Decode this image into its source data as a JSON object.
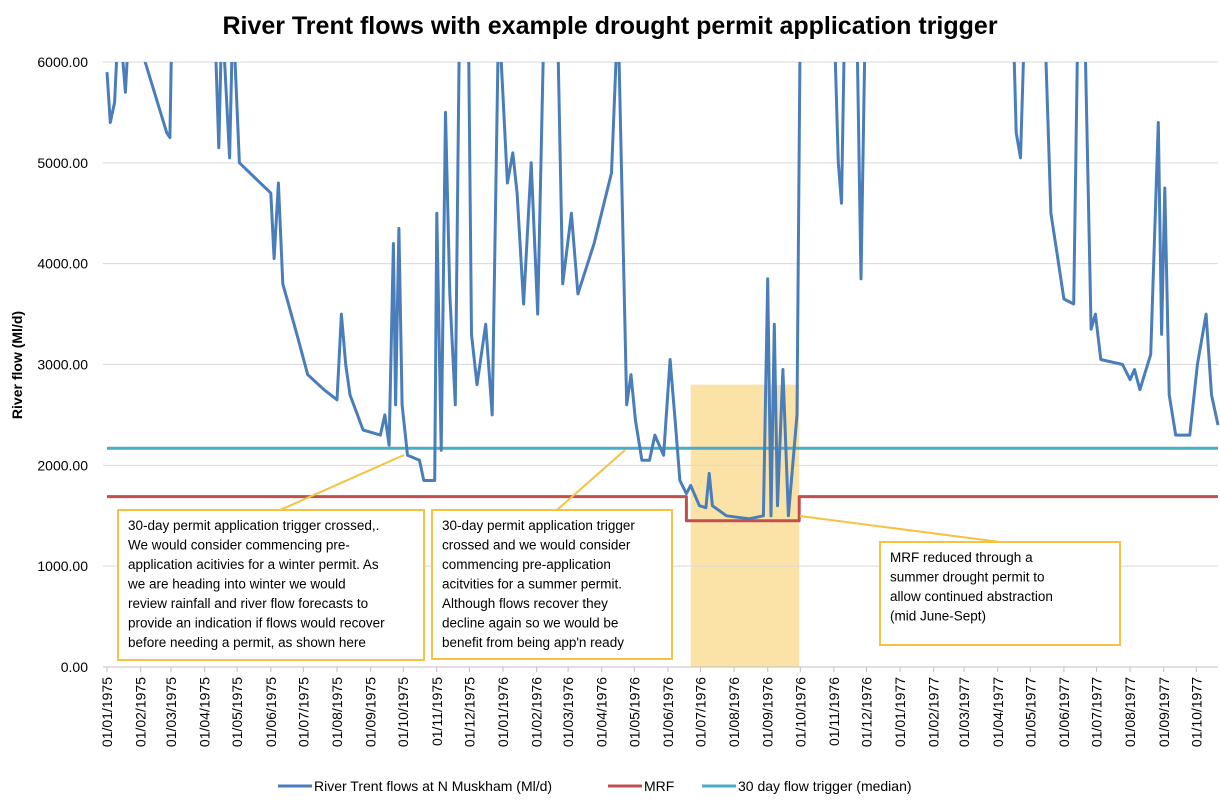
{
  "chart_data": {
    "type": "line",
    "title": "River Trent flows with example drought permit application trigger",
    "y_label": "River flow (Ml/d)",
    "xlim": [
      "01/01/1975",
      "21/10/1977"
    ],
    "ylim": [
      0,
      6000
    ],
    "yticks": [
      {
        "value": 0,
        "label": "0.00"
      },
      {
        "value": 1000,
        "label": "1000.00"
      },
      {
        "value": 2000,
        "label": "2000.00"
      },
      {
        "value": 3000,
        "label": "3000.00"
      },
      {
        "value": 4000,
        "label": "4000.00"
      },
      {
        "value": 5000,
        "label": "5000.00"
      },
      {
        "value": 6000,
        "label": "6000.00"
      }
    ],
    "xticks": [
      "01/01/1975",
      "01/02/1975",
      "01/03/1975",
      "01/04/1975",
      "01/05/1975",
      "01/06/1975",
      "01/07/1975",
      "01/08/1975",
      "01/09/1975",
      "01/10/1975",
      "01/11/1975",
      "01/12/1975",
      "01/01/1976",
      "01/02/1976",
      "01/03/1976",
      "01/04/1976",
      "01/05/1976",
      "01/06/1976",
      "01/07/1976",
      "01/08/1976",
      "01/09/1976",
      "01/10/1976",
      "01/11/1976",
      "01/12/1976",
      "01/01/1977",
      "01/02/1977",
      "01/03/1977",
      "01/04/1977",
      "01/05/1977",
      "01/06/1977",
      "01/07/1977",
      "01/08/1977",
      "01/09/1977",
      "01/10/1977"
    ],
    "grid": true,
    "legend": "bottom",
    "highlight": {
      "x": [
        "22/06/1976",
        "30/09/1976"
      ],
      "y": [
        0,
        2800
      ],
      "color": "#fbe3a8"
    },
    "series": [
      {
        "name": "River Trent flows at N Muskham (Ml/d)",
        "color": "#4a7ebb",
        "x": [
          "01/01/1975",
          "04/01/1975",
          "08/01/1975",
          "12/01/1975",
          "18/01/1975",
          "22/01/1975",
          "25/02/1975",
          "28/02/1975",
          "02/03/1975",
          "10/04/1975",
          "14/04/1975",
          "17/04/1975",
          "24/04/1975",
          "27/04/1975",
          "03/05/1975",
          "01/06/1975",
          "04/06/1975",
          "08/06/1975",
          "12/06/1975",
          "25/06/1975",
          "05/07/1975",
          "20/07/1975",
          "01/08/1975",
          "05/08/1975",
          "09/08/1975",
          "13/08/1975",
          "25/08/1975",
          "10/09/1975",
          "14/09/1975",
          "18/09/1975",
          "22/09/1975",
          "24/09/1975",
          "27/09/1975",
          "30/09/1975",
          "05/10/1975",
          "16/10/1975",
          "20/10/1975",
          "30/10/1975",
          "01/11/1975",
          "05/11/1975",
          "09/11/1975",
          "13/11/1975",
          "18/11/1975",
          "22/11/1975",
          "30/11/1975",
          "03/12/1975",
          "08/12/1975",
          "16/12/1975",
          "22/12/1975",
          "28/12/1975",
          "05/01/1976",
          "10/01/1976",
          "14/01/1976",
          "20/01/1976",
          "27/01/1976",
          "02/02/1976",
          "08/02/1976",
          "20/02/1976",
          "25/02/1976",
          "04/03/1976",
          "10/03/1976",
          "25/03/1976",
          "10/04/1976",
          "16/04/1976",
          "24/04/1976",
          "28/04/1976",
          "02/05/1976",
          "08/05/1976",
          "15/05/1976",
          "20/05/1976",
          "28/05/1976",
          "03/06/1976",
          "08/06/1976",
          "12/06/1976",
          "18/06/1976",
          "22/06/1976",
          "30/06/1976",
          "06/07/1976",
          "09/07/1976",
          "12/07/1976",
          "25/07/1976",
          "15/08/1976",
          "28/08/1976",
          "01/09/1976",
          "04/09/1976",
          "07/09/1976",
          "10/09/1976",
          "15/09/1976",
          "20/09/1976",
          "28/09/1976",
          "01/10/1976",
          "01/11/1976",
          "05/11/1976",
          "08/11/1976",
          "11/11/1976",
          "22/11/1976",
          "26/11/1976",
          "30/11/1976",
          "15/04/1977",
          "18/04/1977",
          "22/04/1977",
          "26/04/1977",
          "14/05/1977",
          "20/05/1977",
          "25/05/1977",
          "01/06/1977",
          "10/06/1977",
          "14/06/1977",
          "20/06/1977",
          "26/06/1977",
          "30/06/1977",
          "05/07/1977",
          "25/07/1977",
          "01/08/1977",
          "05/08/1977",
          "10/08/1977",
          "20/08/1977",
          "27/08/1977",
          "30/08/1977",
          "02/09/1977",
          "06/09/1977",
          "12/09/1977",
          "25/09/1977",
          "02/10/1977",
          "10/10/1977",
          "15/10/1977",
          "21/10/1977"
        ],
        "values": [
          5900,
          5400,
          5600,
          6500,
          5700,
          6500,
          5300,
          5250,
          6500,
          6500,
          5150,
          6500,
          5050,
          6500,
          5000,
          4700,
          4050,
          4800,
          3800,
          3300,
          2900,
          2750,
          2650,
          3500,
          3000,
          2700,
          2350,
          2300,
          2500,
          2200,
          4200,
          2600,
          4350,
          2600,
          2100,
          2050,
          1850,
          1850,
          4500,
          2150,
          5500,
          3700,
          2600,
          6500,
          6500,
          3300,
          2800,
          3400,
          2500,
          6500,
          4800,
          5100,
          4700,
          3600,
          5000,
          3500,
          6500,
          6500,
          3800,
          4500,
          3700,
          4200,
          4900,
          6500,
          2600,
          2900,
          2450,
          2050,
          2050,
          2300,
          2100,
          3050,
          2400,
          1850,
          1720,
          1800,
          1600,
          1580,
          1920,
          1600,
          1500,
          1470,
          1500,
          3850,
          1500,
          3400,
          1600,
          2950,
          1500,
          2500,
          6500,
          6500,
          5000,
          4600,
          6500,
          6500,
          3850,
          6500,
          6500,
          5300,
          5050,
          6500,
          6500,
          4500,
          4150,
          3650,
          3600,
          6500,
          6500,
          3350,
          3500,
          3050,
          3000,
          2850,
          2950,
          2750,
          3100,
          5400,
          3300,
          4750,
          2700,
          2300,
          2300,
          3000,
          3500,
          2700,
          2400
        ]
      },
      {
        "name": "MRF",
        "color": "#c0504d",
        "x": [
          "01/01/1975",
          "18/06/1976",
          "18/06/1976",
          "30/09/1976",
          "30/09/1976",
          "21/10/1977"
        ],
        "values": [
          1690,
          1690,
          1450,
          1450,
          1690,
          1690
        ]
      },
      {
        "name": "30 day flow trigger (median)",
        "color": "#4bacc6",
        "x": [
          "01/01/1975",
          "21/10/1977"
        ],
        "values": [
          2170,
          2170
        ]
      }
    ],
    "annotations": [
      {
        "lines": [
          "30-day permit application trigger crossed,.",
          "We would consider commencing pre-",
          "application acitivies for a winter permit. As",
          "we are heading into winter we would",
          "review rainfall and river flow forecasts to",
          "provide an indication if flows would recover",
          "before needing a permit, as  shown here"
        ]
      },
      {
        "lines": [
          "30-day permit application trigger",
          "crossed and we would consider",
          "commencing pre-application",
          "acitvities for a summer permit.",
          "Although flows recover they",
          "decline  again so we would be",
          "benefit from being app'n ready"
        ]
      },
      {
        "lines": [
          "MRF reduced through a",
          "summer drought permit to",
          "allow continued abstraction",
          "(mid June-Sept)"
        ]
      }
    ]
  }
}
